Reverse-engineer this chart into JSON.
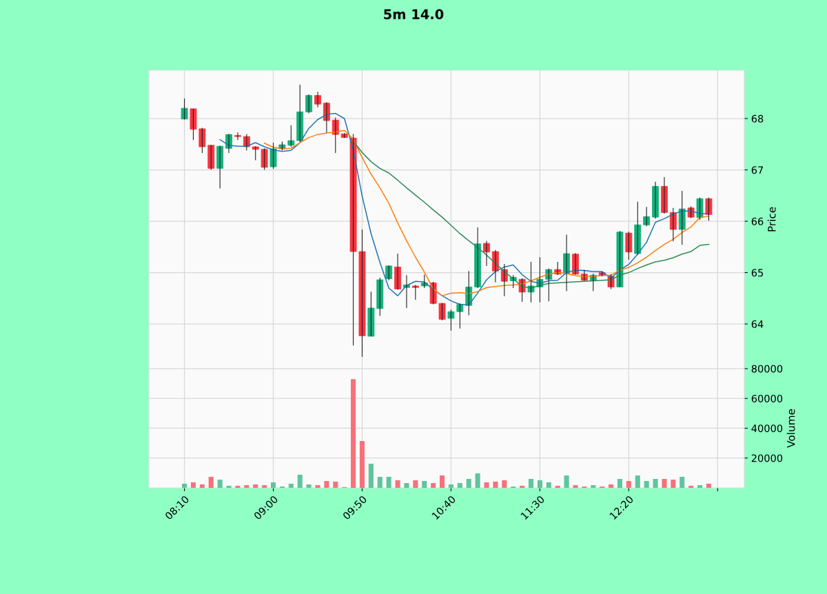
{
  "chart_data": [
    {
      "type": "candlestick",
      "title": "5m 14.0",
      "ylabel": "Price",
      "grid": true,
      "tick_labels": "y",
      "x": [
        8.1667,
        8.25,
        8.3333,
        8.4167,
        8.5,
        8.5833,
        8.6667,
        8.75,
        8.8333,
        8.9167,
        9,
        9.0833,
        9.1667,
        9.25,
        9.3333,
        9.4167,
        9.5,
        9.5833,
        9.6667,
        9.75,
        9.8333,
        9.9167,
        10,
        10.0833,
        10.1667,
        10.25,
        10.3333,
        10.4167,
        10.5,
        10.5833,
        10.6667,
        10.75,
        10.8333,
        10.9167,
        11,
        11.0833,
        11.1667,
        11.25,
        11.3333,
        11.4167,
        11.5,
        11.5833,
        11.6667,
        11.75,
        11.8333,
        11.9167,
        12,
        12.0833,
        12.1667,
        12.25,
        12.3333,
        12.4167,
        12.5,
        12.5833,
        12.6667,
        12.75,
        12.8333,
        12.9167,
        13,
        13.0833
      ],
      "ohlc": [
        [
          67.99,
          68.39,
          67.98,
          68.2
        ],
        [
          68.19,
          68.19,
          67.58,
          67.79
        ],
        [
          67.8,
          67.82,
          67.33,
          67.45
        ],
        [
          67.48,
          67.48,
          67.0,
          67.03
        ],
        [
          67.03,
          67.47,
          66.64,
          67.46
        ],
        [
          67.42,
          67.7,
          67.33,
          67.69
        ],
        [
          67.67,
          67.73,
          67.58,
          67.65
        ],
        [
          67.65,
          67.7,
          67.38,
          67.45
        ],
        [
          67.45,
          67.46,
          67.19,
          67.4
        ],
        [
          67.4,
          67.42,
          67.0,
          67.05
        ],
        [
          67.06,
          67.53,
          67.02,
          67.41
        ],
        [
          67.41,
          67.55,
          67.38,
          67.49
        ],
        [
          67.48,
          67.87,
          67.45,
          67.57
        ],
        [
          67.57,
          68.66,
          67.55,
          68.13
        ],
        [
          68.13,
          68.47,
          68.1,
          68.45
        ],
        [
          68.45,
          68.52,
          68.22,
          68.28
        ],
        [
          68.3,
          68.32,
          67.73,
          67.96
        ],
        [
          67.97,
          68.02,
          67.33,
          67.69
        ],
        [
          67.7,
          67.72,
          67.62,
          67.63
        ],
        [
          67.62,
          67.7,
          63.58,
          65.41
        ],
        [
          65.41,
          65.84,
          63.36,
          63.77
        ],
        [
          63.76,
          64.63,
          63.76,
          64.31
        ],
        [
          64.3,
          64.9,
          64.16,
          64.86
        ],
        [
          64.88,
          65.14,
          64.85,
          65.13
        ],
        [
          65.11,
          65.37,
          64.67,
          64.68
        ],
        [
          64.71,
          64.95,
          64.31,
          64.76
        ],
        [
          64.74,
          64.76,
          64.47,
          64.71
        ],
        [
          64.74,
          64.96,
          64.7,
          64.8
        ],
        [
          64.8,
          64.82,
          64.38,
          64.4
        ],
        [
          64.4,
          64.41,
          64.07,
          64.09
        ],
        [
          64.11,
          64.28,
          63.87,
          64.24
        ],
        [
          64.24,
          64.4,
          63.91,
          64.38
        ],
        [
          64.36,
          65.03,
          64.17,
          64.72
        ],
        [
          64.72,
          65.88,
          64.7,
          65.56
        ],
        [
          65.57,
          65.62,
          65.13,
          65.4
        ],
        [
          65.41,
          65.44,
          64.81,
          65.03
        ],
        [
          65.06,
          65.17,
          64.54,
          64.83
        ],
        [
          64.84,
          64.95,
          64.7,
          64.91
        ],
        [
          64.87,
          64.89,
          64.43,
          64.62
        ],
        [
          64.62,
          65.21,
          64.42,
          64.74
        ],
        [
          64.72,
          65.3,
          64.42,
          64.87
        ],
        [
          64.87,
          65.08,
          64.44,
          65.06
        ],
        [
          65.06,
          65.21,
          64.95,
          64.97
        ],
        [
          64.98,
          65.74,
          64.64,
          65.37
        ],
        [
          65.36,
          65.38,
          64.96,
          64.97
        ],
        [
          64.97,
          65.05,
          64.84,
          64.85
        ],
        [
          64.85,
          64.98,
          64.64,
          64.95
        ],
        [
          65.0,
          65.02,
          64.93,
          64.95
        ],
        [
          64.93,
          64.97,
          64.68,
          64.72
        ],
        [
          64.72,
          65.81,
          64.72,
          65.79
        ],
        [
          65.77,
          65.8,
          65.25,
          65.4
        ],
        [
          65.37,
          66.38,
          65.35,
          65.93
        ],
        [
          65.93,
          66.28,
          65.9,
          66.09
        ],
        [
          66.08,
          66.77,
          66.05,
          66.68
        ],
        [
          66.68,
          66.86,
          66.15,
          66.17
        ],
        [
          66.17,
          66.26,
          65.61,
          65.84
        ],
        [
          65.84,
          66.59,
          65.54,
          66.24
        ],
        [
          66.26,
          66.29,
          66.06,
          66.08
        ],
        [
          66.07,
          66.46,
          66.03,
          66.44
        ],
        [
          66.44,
          66.46,
          66.01,
          66.13
        ]
      ],
      "colors": [
        "#14b07a",
        "#f8343f",
        "#f8343f",
        "#f8343f",
        "#14b07a",
        "#14b07a",
        "#f8343f",
        "#f8343f",
        "#f8343f",
        "#f8343f",
        "#14b07a",
        "#14b07a",
        "#14b07a",
        "#14b07a",
        "#14b07a",
        "#f8343f",
        "#f8343f",
        "#f8343f",
        "#f8343f",
        "#f8343f",
        "#f8343f",
        "#14b07a",
        "#14b07a",
        "#14b07a",
        "#f8343f",
        "#14b07a",
        "#f8343f",
        "#14b07a",
        "#f8343f",
        "#f8343f",
        "#14b07a",
        "#14b07a",
        "#14b07a",
        "#14b07a",
        "#f8343f",
        "#f8343f",
        "#f8343f",
        "#14b07a",
        "#f8343f",
        "#14b07a",
        "#14b07a",
        "#14b07a",
        "#f8343f",
        "#14b07a",
        "#f8343f",
        "#f8343f",
        "#14b07a",
        "#f8343f",
        "#f8343f",
        "#14b07a",
        "#f8343f",
        "#14b07a",
        "#14b07a",
        "#14b07a",
        "#f8343f",
        "#f8343f",
        "#14b07a",
        "#f8343f",
        "#14b07a",
        "#f8343f"
      ],
      "series": [
        {
          "type": "line",
          "color": "#1f77b4",
          "values": [
            null,
            null,
            null,
            null,
            67.59,
            67.48,
            67.46,
            67.46,
            67.53,
            67.45,
            67.39,
            67.36,
            67.38,
            67.53,
            67.81,
            67.98,
            68.08,
            68.1,
            68.0,
            67.39,
            66.49,
            65.76,
            65.2,
            64.7,
            64.55,
            64.75,
            64.83,
            64.82,
            64.67,
            64.55,
            64.45,
            64.38,
            64.37,
            64.6,
            64.86,
            65.02,
            65.11,
            65.15,
            64.96,
            64.83,
            64.79,
            64.84,
            64.85,
            65.0,
            65.05,
            65.04,
            65.02,
            65.02,
            64.89,
            65.05,
            65.16,
            65.36,
            65.59,
            65.98,
            66.05,
            66.14,
            66.2,
            66.2,
            66.15,
            66.15
          ]
        },
        {
          "type": "line",
          "color": "#ff7f0e",
          "values": [
            null,
            null,
            null,
            null,
            null,
            null,
            null,
            null,
            null,
            67.52,
            67.44,
            67.41,
            67.42,
            67.53,
            67.63,
            67.69,
            67.72,
            67.74,
            67.77,
            67.6,
            67.24,
            66.92,
            66.65,
            66.35,
            65.97,
            65.62,
            65.3,
            65.01,
            64.68,
            64.55,
            64.6,
            64.61,
            64.59,
            64.63,
            64.71,
            64.73,
            64.75,
            64.76,
            64.78,
            64.84,
            64.91,
            64.97,
            65.0,
            64.98,
            64.94,
            64.92,
            64.93,
            64.94,
            64.95,
            65.05,
            65.1,
            65.19,
            65.3,
            65.43,
            65.55,
            65.65,
            65.78,
            65.89,
            66.07,
            66.1
          ]
        },
        {
          "type": "line",
          "color": "#2e8b57",
          "values": [
            null,
            null,
            null,
            null,
            null,
            null,
            null,
            null,
            null,
            null,
            null,
            null,
            null,
            null,
            null,
            null,
            null,
            null,
            null,
            67.56,
            67.34,
            67.16,
            67.03,
            66.94,
            66.8,
            66.65,
            66.51,
            66.37,
            66.22,
            66.08,
            65.92,
            65.76,
            65.62,
            65.49,
            65.34,
            65.18,
            65.02,
            64.88,
            64.73,
            64.7,
            64.75,
            64.79,
            64.8,
            64.81,
            64.82,
            64.83,
            64.84,
            64.85,
            64.86,
            64.95,
            65.0,
            65.08,
            65.15,
            65.21,
            65.24,
            65.29,
            65.36,
            65.41,
            65.53,
            65.55
          ]
        }
      ],
      "xlim": [
        7.8333,
        13.4167
      ],
      "xticks": [
        {
          "value": 8.1667,
          "label": null
        },
        {
          "value": 9,
          "label": null
        },
        {
          "value": 9.8333,
          "label": null
        },
        {
          "value": 10.6667,
          "label": null
        },
        {
          "value": 11.5,
          "label": null
        },
        {
          "value": 12.3333,
          "label": null
        },
        {
          "value": 13.1667,
          "label": null
        }
      ],
      "ylim": [
        63.13,
        68.94
      ],
      "yticks": [
        64,
        65,
        66,
        67,
        68
      ]
    },
    {
      "type": "bar",
      "ylabel": "Volume",
      "grid": true,
      "x": [
        8.1667,
        8.25,
        8.3333,
        8.4167,
        8.5,
        8.5833,
        8.6667,
        8.75,
        8.8333,
        8.9167,
        9,
        9.0833,
        9.1667,
        9.25,
        9.3333,
        9.4167,
        9.5,
        9.5833,
        9.6667,
        9.75,
        9.8333,
        9.9167,
        10,
        10.0833,
        10.1667,
        10.25,
        10.3333,
        10.4167,
        10.5,
        10.5833,
        10.6667,
        10.75,
        10.8333,
        10.9167,
        11,
        11.0833,
        11.1667,
        11.25,
        11.3333,
        11.4167,
        11.5,
        11.5833,
        11.6667,
        11.75,
        11.8333,
        11.9167,
        12,
        12.0833,
        12.1667,
        12.25,
        12.3333,
        12.4167,
        12.5,
        12.5833,
        12.6667,
        12.75,
        12.8333,
        12.9167,
        13,
        13.0833
      ],
      "values": [
        2800,
        3700,
        2300,
        7400,
        5500,
        1400,
        1400,
        1800,
        2300,
        1800,
        3700,
        900,
        2800,
        8800,
        2300,
        1800,
        4600,
        4200,
        500,
        72900,
        31400,
        16200,
        7400,
        7400,
        5100,
        3200,
        5100,
        4600,
        3200,
        8300,
        2300,
        3200,
        6000,
        9700,
        3700,
        4200,
        5100,
        900,
        1400,
        6000,
        5100,
        3700,
        1400,
        8300,
        1800,
        900,
        1800,
        900,
        2300,
        6000,
        4600,
        8300,
        4600,
        6000,
        6000,
        5500,
        7400,
        1400,
        1800,
        2800
      ],
      "colors": [
        "#5ec59d",
        "#f7717a",
        "#f7717a",
        "#f7717a",
        "#5ec59d",
        "#5ec59d",
        "#f7717a",
        "#f7717a",
        "#f7717a",
        "#f7717a",
        "#5ec59d",
        "#5ec59d",
        "#5ec59d",
        "#5ec59d",
        "#5ec59d",
        "#f7717a",
        "#f7717a",
        "#f7717a",
        "#f7717a",
        "#f7717a",
        "#f7717a",
        "#5ec59d",
        "#5ec59d",
        "#5ec59d",
        "#f7717a",
        "#5ec59d",
        "#f7717a",
        "#5ec59d",
        "#f7717a",
        "#f7717a",
        "#5ec59d",
        "#5ec59d",
        "#5ec59d",
        "#5ec59d",
        "#f7717a",
        "#f7717a",
        "#f7717a",
        "#5ec59d",
        "#f7717a",
        "#5ec59d",
        "#5ec59d",
        "#5ec59d",
        "#f7717a",
        "#5ec59d",
        "#f7717a",
        "#f7717a",
        "#5ec59d",
        "#f7717a",
        "#f7717a",
        "#5ec59d",
        "#f7717a",
        "#5ec59d",
        "#5ec59d",
        "#5ec59d",
        "#f7717a",
        "#f7717a",
        "#5ec59d",
        "#f7717a",
        "#5ec59d",
        "#f7717a"
      ],
      "xlim": [
        7.8333,
        13.4167
      ],
      "xticks": [
        {
          "value": 8.1667,
          "label": "08:10"
        },
        {
          "value": 9,
          "label": "09:00"
        },
        {
          "value": 9.8333,
          "label": "09:50"
        },
        {
          "value": 10.6667,
          "label": "10:40"
        },
        {
          "value": 11.5,
          "label": "11:30"
        },
        {
          "value": 12.3333,
          "label": "12:20"
        },
        {
          "value": 13.1667,
          "label": null
        }
      ],
      "ylim": [
        0,
        80000
      ],
      "yticks": [
        20000,
        40000,
        60000,
        80000
      ]
    }
  ]
}
